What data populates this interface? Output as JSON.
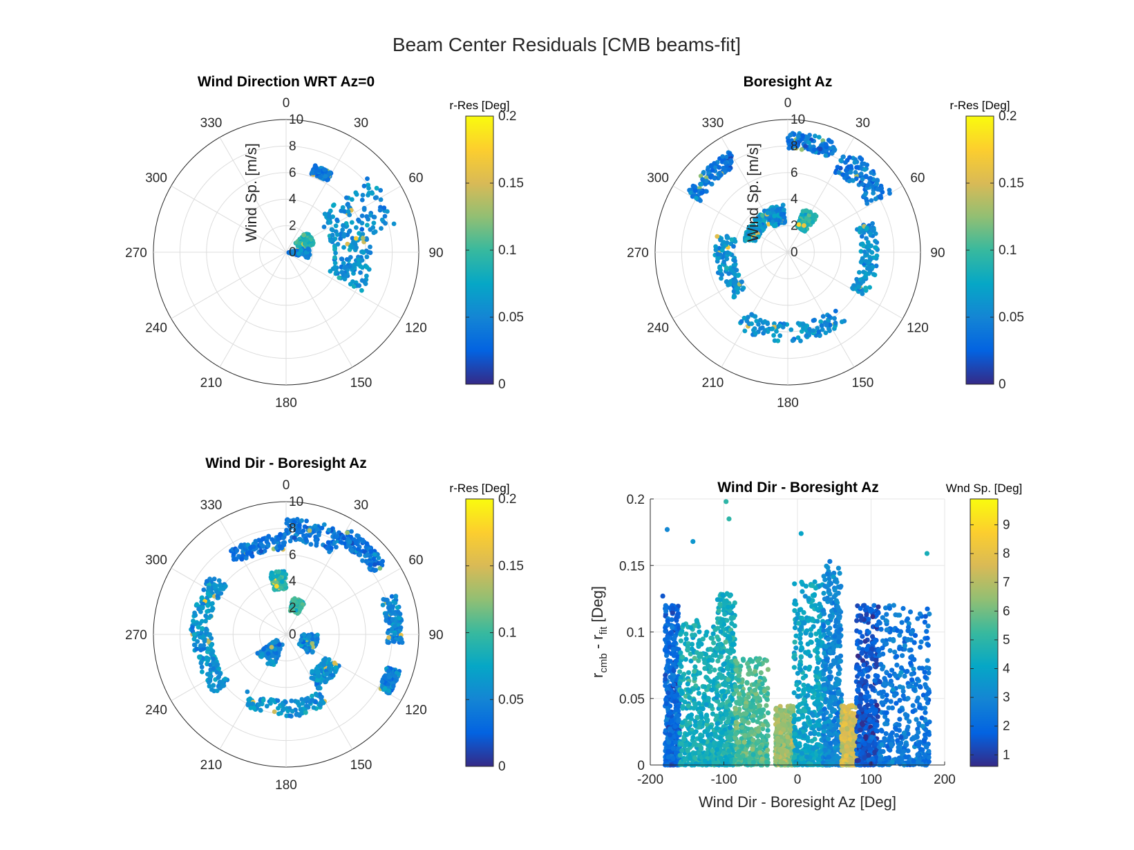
{
  "figure": {
    "title": "Beam Center Residuals [CMB beams-fit]",
    "background": "#ffffff"
  },
  "colormap": {
    "name": "parula",
    "stops": [
      "#352a87",
      "#0363e1",
      "#1485d4",
      "#06a7c6",
      "#38b99e",
      "#92bf73",
      "#d9ba56",
      "#fcce2e",
      "#f9fb0e"
    ]
  },
  "chart_data": [
    {
      "type": "scatter",
      "coordinates": "polar",
      "title": "Wind Direction WRT Az=0",
      "rlabel": "Wind Sp. [m/s]",
      "rlim": [
        0,
        10
      ],
      "r_ticks": [
        "0",
        "2",
        "4",
        "6",
        "8",
        "10"
      ],
      "theta_ticks": [
        "0",
        "30",
        "60",
        "90",
        "120",
        "150",
        "180",
        "210",
        "240",
        "270",
        "300",
        "330"
      ],
      "theta_zero": "top",
      "theta_direction": "clockwise",
      "grid": true,
      "color_variable": "r-Res [Deg]",
      "colorbar": {
        "title": "r-Res [Deg]",
        "range": [
          0,
          0.2
        ],
        "ticks": [
          "0",
          "0.05",
          "0.1",
          "0.15",
          "0.2"
        ]
      },
      "clusters": [
        {
          "theta": [
            45,
            78
          ],
          "r": [
            3.4,
            8.6
          ],
          "c_mean": 0.055
        },
        {
          "theta": [
            78,
            118
          ],
          "r": [
            3.6,
            6.5
          ],
          "c_mean": 0.06
        },
        {
          "theta": [
            18,
            30
          ],
          "r": [
            6.2,
            6.9
          ],
          "c_mean": 0.04
        },
        {
          "theta": [
            45,
            75
          ],
          "r": [
            1.0,
            2.2
          ],
          "c_mean": 0.09
        },
        {
          "theta": [
            80,
            105
          ],
          "r": [
            0.2,
            1.8
          ],
          "c_mean": 0.05
        }
      ]
    },
    {
      "type": "scatter",
      "coordinates": "polar",
      "title": "Boresight Az",
      "rlabel": "Wind Sp. [m/s]",
      "rlim": [
        0,
        10
      ],
      "r_ticks": [
        "0",
        "2",
        "4",
        "6",
        "8",
        "10"
      ],
      "theta_ticks": [
        "0",
        "30",
        "60",
        "90",
        "120",
        "150",
        "180",
        "210",
        "240",
        "270",
        "300",
        "330"
      ],
      "theta_zero": "top",
      "theta_direction": "clockwise",
      "grid": true,
      "color_variable": "r-Res [Deg]",
      "colorbar": {
        "title": "r-Res [Deg]",
        "range": [
          0,
          0.2
        ],
        "ticks": [
          "0",
          "0.05",
          "0.1",
          "0.15",
          "0.2"
        ]
      },
      "clusters": [
        {
          "theta": [
            0,
            25
          ],
          "r": [
            7.8,
            9.0
          ],
          "c_mean": 0.04
        },
        {
          "theta": [
            30,
            60
          ],
          "r": [
            7.0,
            9.0
          ],
          "c_mean": 0.04
        },
        {
          "theta": [
            300,
            330
          ],
          "r": [
            7.6,
            8.8
          ],
          "c_mean": 0.04
        },
        {
          "theta": [
            70,
            120
          ],
          "r": [
            5.5,
            6.8
          ],
          "c_mean": 0.06
        },
        {
          "theta": [
            140,
            215
          ],
          "r": [
            5.4,
            6.8
          ],
          "c_mean": 0.06
        },
        {
          "theta": [
            230,
            285
          ],
          "r": [
            4.0,
            5.5
          ],
          "c_mean": 0.06
        },
        {
          "theta": [
            285,
            330
          ],
          "r": [
            2.5,
            3.5
          ],
          "c_mean": 0.07
        },
        {
          "theta": [
            330,
            355
          ],
          "r": [
            2.2,
            3.6
          ],
          "c_mean": 0.06
        },
        {
          "theta": [
            20,
            40
          ],
          "r": [
            2.0,
            3.5
          ],
          "c_mean": 0.09
        }
      ]
    },
    {
      "type": "scatter",
      "coordinates": "polar",
      "title": "Wind Dir - Boresight Az",
      "rlim": [
        0,
        10
      ],
      "r_ticks": [
        "0",
        "2",
        "4",
        "6",
        "8",
        "10"
      ],
      "theta_ticks": [
        "0",
        "30",
        "60",
        "90",
        "120",
        "150",
        "180",
        "210",
        "240",
        "270",
        "300",
        "330"
      ],
      "theta_zero": "top",
      "theta_direction": "clockwise",
      "grid": true,
      "color_variable": "r-Res [Deg]",
      "colorbar": {
        "title": "r-Res [Deg]",
        "range": [
          0,
          0.2
        ],
        "ticks": [
          "0",
          "0.05",
          "0.1",
          "0.15",
          "0.2"
        ]
      },
      "clusters": [
        {
          "theta": [
            0,
            30
          ],
          "r": [
            7.0,
            8.8
          ],
          "c_mean": 0.04
        },
        {
          "theta": [
            30,
            55
          ],
          "r": [
            8.0,
            9.2
          ],
          "c_mean": 0.04
        },
        {
          "theta": [
            325,
            360
          ],
          "r": [
            6.4,
            7.6
          ],
          "c_mean": 0.04
        },
        {
          "theta": [
            70,
            95
          ],
          "r": [
            7.6,
            8.8
          ],
          "c_mean": 0.05
        },
        {
          "theta": [
            108,
            120
          ],
          "r": [
            8.0,
            9.0
          ],
          "c_mean": 0.05
        },
        {
          "theta": [
            270,
            310
          ],
          "r": [
            5.8,
            7.2
          ],
          "c_mean": 0.06
        },
        {
          "theta": [
            230,
            270
          ],
          "r": [
            5.6,
            7.0
          ],
          "c_mean": 0.06
        },
        {
          "theta": [
            150,
            215
          ],
          "r": [
            5.0,
            6.2
          ],
          "c_mean": 0.06
        },
        {
          "theta": [
            120,
            150
          ],
          "r": [
            3.4,
            4.8
          ],
          "c_mean": 0.06
        },
        {
          "theta": [
            345,
            360
          ],
          "r": [
            3.4,
            4.8
          ],
          "c_mean": 0.09
        },
        {
          "theta": [
            10,
            30
          ],
          "r": [
            1.8,
            2.8
          ],
          "c_mean": 0.1
        },
        {
          "theta": [
            90,
            130
          ],
          "r": [
            1.2,
            2.4
          ],
          "c_mean": 0.05
        },
        {
          "theta": [
            200,
            240
          ],
          "r": [
            0.8,
            2.6
          ],
          "c_mean": 0.05
        }
      ]
    },
    {
      "type": "scatter",
      "title": "Wind Dir - Boresight Az",
      "xlabel": "Wind Dir - Boresight Az [Deg]",
      "ylabel_main": "r",
      "ylabel_sub1": "cmb",
      "ylabel_mid": " - r",
      "ylabel_sub2": "fit",
      "ylabel_unit": " [Deg]",
      "xlim": [
        -200,
        200
      ],
      "ylim": [
        0,
        0.2
      ],
      "x_ticks": [
        -200,
        -100,
        0,
        100,
        200
      ],
      "y_ticks": [
        0,
        0.05,
        0.1,
        0.15,
        0.2
      ],
      "grid": true,
      "color_variable": "Wnd Sp. [Deg]",
      "colorbar": {
        "title": "Wnd Sp. [Deg]",
        "range": [
          0.6,
          9.9
        ],
        "ticks": [
          "1",
          "2",
          "3",
          "4",
          "5",
          "6",
          "7",
          "8",
          "9"
        ]
      },
      "clusters": [
        {
          "x": [
            -180,
            -160
          ],
          "ymax": 0.12,
          "c_mean": 2.0
        },
        {
          "x": [
            -160,
            -110
          ],
          "ymax": 0.11,
          "c_mean": 4.5
        },
        {
          "x": [
            -110,
            -85
          ],
          "ymax": 0.13,
          "c_mean": 4.5
        },
        {
          "x": [
            -85,
            -40
          ],
          "ymax": 0.08,
          "c_mean": 5.5
        },
        {
          "x": [
            -30,
            -5
          ],
          "ymax": 0.045,
          "c_mean": 6.5
        },
        {
          "x": [
            -5,
            35
          ],
          "ymax": 0.14,
          "c_mean": 4.0
        },
        {
          "x": [
            35,
            60
          ],
          "ymax": 0.15,
          "c_mean": 3.0
        },
        {
          "x": [
            60,
            80
          ],
          "ymax": 0.045,
          "c_mean": 7.5
        },
        {
          "x": [
            80,
            110
          ],
          "ymax": 0.12,
          "c_mean": 1.5
        },
        {
          "x": [
            110,
            180
          ],
          "ymax": 0.12,
          "c_mean": 2.5
        }
      ],
      "outliers": [
        {
          "x": -177,
          "y": 0.177,
          "c": 3.0
        },
        {
          "x": -142,
          "y": 0.168,
          "c": 3.5
        },
        {
          "x": -97,
          "y": 0.198,
          "c": 5.0
        },
        {
          "x": -93,
          "y": 0.185,
          "c": 5.0
        },
        {
          "x": 5,
          "y": 0.174,
          "c": 4.0
        },
        {
          "x": 44,
          "y": 0.153,
          "c": 2.5
        },
        {
          "x": 176,
          "y": 0.159,
          "c": 4.5
        },
        {
          "x": -183,
          "y": 0.127,
          "c": 1.5
        }
      ]
    }
  ]
}
